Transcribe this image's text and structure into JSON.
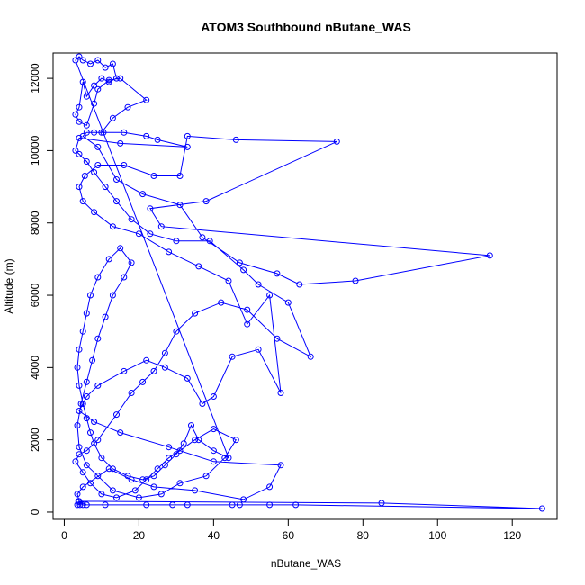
{
  "chart_data": {
    "type": "scatter",
    "title": "ATOM3 Southbound nButane_WAS",
    "xlabel": "nButane_WAS",
    "ylabel": "Altitude (m)",
    "xlim": [
      -3,
      132
    ],
    "ylim": [
      -200,
      12700
    ],
    "xticks": [
      0,
      20,
      40,
      60,
      80,
      100,
      120
    ],
    "yticks": [
      0,
      2000,
      4000,
      6000,
      8000,
      10000,
      12000
    ],
    "grid": false,
    "legend": "none",
    "series": [
      {
        "color": "#0000ff",
        "marker": "open-circle",
        "connected": true,
        "points": [
          [
            3.5,
            200
          ],
          [
            4.2,
            200
          ],
          [
            5,
            200
          ],
          [
            3.8,
            300
          ],
          [
            6,
            200
          ],
          [
            11,
            200
          ],
          [
            22,
            200
          ],
          [
            29,
            200
          ],
          [
            33,
            200
          ],
          [
            45,
            200
          ],
          [
            47,
            200
          ],
          [
            55,
            200
          ],
          [
            62,
            200
          ],
          [
            128,
            100
          ],
          [
            85,
            250
          ],
          [
            4,
            300
          ],
          [
            3.5,
            500
          ],
          [
            5,
            700
          ],
          [
            12,
            1200
          ],
          [
            18,
            900
          ],
          [
            24,
            700
          ],
          [
            35,
            600
          ],
          [
            48,
            350
          ],
          [
            55,
            700
          ],
          [
            58,
            1300
          ],
          [
            40,
            1400
          ],
          [
            28,
            1800
          ],
          [
            15,
            2200
          ],
          [
            8,
            2500
          ],
          [
            4,
            2800
          ],
          [
            6,
            3200
          ],
          [
            9,
            3500
          ],
          [
            16,
            3900
          ],
          [
            22,
            4200
          ],
          [
            27,
            4000
          ],
          [
            33,
            3700
          ],
          [
            37,
            3000
          ],
          [
            40,
            3200
          ],
          [
            45,
            4300
          ],
          [
            52,
            4500
          ],
          [
            58,
            3300
          ],
          [
            55,
            6000
          ],
          [
            49,
            5200
          ],
          [
            44,
            6400
          ],
          [
            36,
            6800
          ],
          [
            28,
            7200
          ],
          [
            20,
            7700
          ],
          [
            13,
            7900
          ],
          [
            8,
            8300
          ],
          [
            5,
            8600
          ],
          [
            4,
            9000
          ],
          [
            5.5,
            9300
          ],
          [
            9,
            9600
          ],
          [
            16,
            9600
          ],
          [
            24,
            9300
          ],
          [
            31,
            9300
          ],
          [
            33,
            10400
          ],
          [
            46,
            10300
          ],
          [
            73,
            10250
          ],
          [
            38,
            8600
          ],
          [
            23,
            8400
          ],
          [
            26,
            7900
          ],
          [
            114,
            7100
          ],
          [
            78,
            6400
          ],
          [
            63,
            6300
          ],
          [
            57,
            6600
          ],
          [
            47,
            6900
          ],
          [
            37,
            7600
          ],
          [
            31,
            8500
          ],
          [
            21,
            8800
          ],
          [
            14,
            9200
          ],
          [
            9,
            10100
          ],
          [
            5,
            10400
          ],
          [
            6,
            10500
          ],
          [
            8,
            10500
          ],
          [
            10.5,
            10500
          ],
          [
            16,
            10500
          ],
          [
            22,
            10400
          ],
          [
            25,
            10300
          ],
          [
            33,
            10100
          ],
          [
            15,
            10200
          ],
          [
            4,
            10350
          ],
          [
            3,
            10000
          ],
          [
            4,
            9900
          ],
          [
            6,
            9700
          ],
          [
            8,
            9400
          ],
          [
            11,
            9000
          ],
          [
            14,
            8600
          ],
          [
            18,
            8100
          ],
          [
            23,
            7700
          ],
          [
            30,
            7500
          ],
          [
            39,
            7500
          ],
          [
            48,
            6700
          ],
          [
            52,
            6300
          ],
          [
            60,
            5800
          ],
          [
            66,
            4300
          ],
          [
            57,
            4800
          ],
          [
            49,
            5600
          ],
          [
            42,
            5800
          ],
          [
            35,
            5500
          ],
          [
            30,
            5000
          ],
          [
            27,
            4400
          ],
          [
            24,
            3900
          ],
          [
            21,
            3600
          ],
          [
            18,
            3300
          ],
          [
            14,
            2700
          ],
          [
            9,
            2000
          ],
          [
            6,
            1700
          ],
          [
            4,
            1600
          ],
          [
            3,
            1400
          ],
          [
            5,
            1100
          ],
          [
            7,
            800
          ],
          [
            10,
            500
          ],
          [
            14,
            400
          ],
          [
            19,
            600
          ],
          [
            22,
            900
          ],
          [
            25,
            1200
          ],
          [
            28,
            1500
          ],
          [
            31,
            1700
          ],
          [
            35,
            2000
          ],
          [
            40,
            2300
          ],
          [
            46,
            2000
          ],
          [
            43,
            1500
          ],
          [
            38,
            1000
          ],
          [
            31,
            800
          ],
          [
            26,
            500
          ],
          [
            20,
            400
          ],
          [
            13,
            600
          ],
          [
            9,
            1000
          ],
          [
            6,
            1300
          ],
          [
            4,
            1800
          ],
          [
            3.5,
            2400
          ],
          [
            4.5,
            3000
          ],
          [
            6,
            3600
          ],
          [
            7.5,
            4200
          ],
          [
            9,
            4800
          ],
          [
            11,
            5400
          ],
          [
            13,
            6000
          ],
          [
            16,
            6500
          ],
          [
            18,
            6900
          ],
          [
            15,
            7300
          ],
          [
            12,
            7000
          ],
          [
            9,
            6500
          ],
          [
            7,
            6000
          ],
          [
            6,
            5500
          ],
          [
            5,
            5000
          ],
          [
            4,
            4500
          ],
          [
            3.5,
            4000
          ],
          [
            4,
            3500
          ],
          [
            5,
            3000
          ],
          [
            6,
            2600
          ],
          [
            7,
            2200
          ],
          [
            8,
            1900
          ],
          [
            10,
            1500
          ],
          [
            13,
            1200
          ],
          [
            17,
            1000
          ],
          [
            21,
            900
          ],
          [
            24,
            1000
          ],
          [
            27,
            1300
          ],
          [
            30,
            1600
          ],
          [
            32,
            1900
          ],
          [
            34,
            2400
          ],
          [
            36,
            2000
          ],
          [
            40,
            1700
          ],
          [
            44,
            1500
          ],
          [
            3,
            12500
          ],
          [
            4,
            12600
          ],
          [
            5,
            12500
          ],
          [
            7,
            12400
          ],
          [
            9,
            12500
          ],
          [
            11,
            12300
          ],
          [
            13,
            12400
          ],
          [
            14,
            12000
          ],
          [
            12,
            11900
          ],
          [
            10,
            12000
          ],
          [
            8,
            11800
          ],
          [
            6,
            11500
          ],
          [
            5,
            11900
          ],
          [
            4,
            11200
          ],
          [
            3,
            11000
          ],
          [
            4,
            10800
          ],
          [
            6,
            10700
          ],
          [
            8,
            11300
          ],
          [
            9,
            11700
          ],
          [
            12,
            11950
          ],
          [
            15,
            12000
          ],
          [
            22,
            11400
          ],
          [
            17,
            11200
          ],
          [
            13,
            10900
          ],
          [
            10,
            10500
          ]
        ]
      }
    ]
  }
}
